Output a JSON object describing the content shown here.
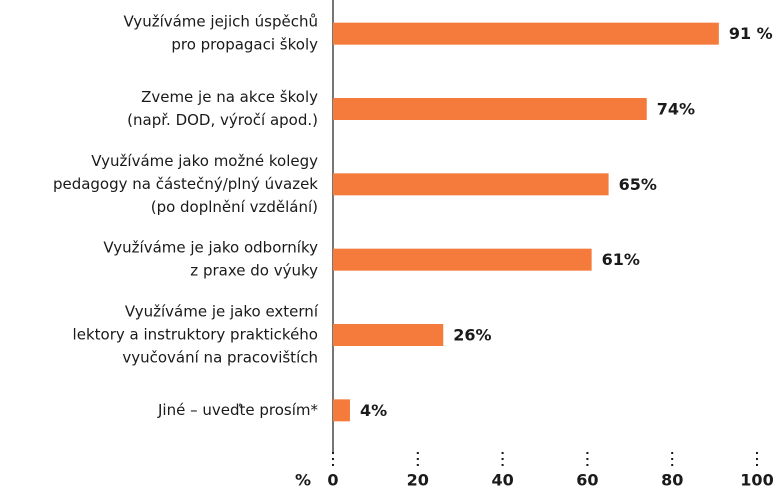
{
  "chart_data": {
    "type": "bar",
    "orientation": "horizontal",
    "categories": [
      [
        "Využíváme jejich úspěchů",
        "pro propagaci školy"
      ],
      [
        "Zveme je na akce školy",
        "(např. DOD, výročí apod.)"
      ],
      [
        "Využíváme jako možné kolegy",
        "pedagogy na částečný/plný úvazek",
        "(po doplnění vzdělání)"
      ],
      [
        "Využíváme je jako odborníky",
        "z praxe do výuky"
      ],
      [
        "Využíváme je jako externí",
        "lektory a instruktory praktického",
        "vyučování na pracovištích"
      ],
      [
        "Jiné – uveďte prosím*"
      ]
    ],
    "values": [
      91,
      74,
      65,
      61,
      26,
      4
    ],
    "value_labels": [
      "91 %",
      "74%",
      "65%",
      "61%",
      "26%",
      "4%"
    ],
    "color": "#f47b3b",
    "xlabel": "%",
    "xlim": [
      0,
      100
    ],
    "xticks": [
      0,
      20,
      40,
      60,
      80,
      100
    ]
  }
}
